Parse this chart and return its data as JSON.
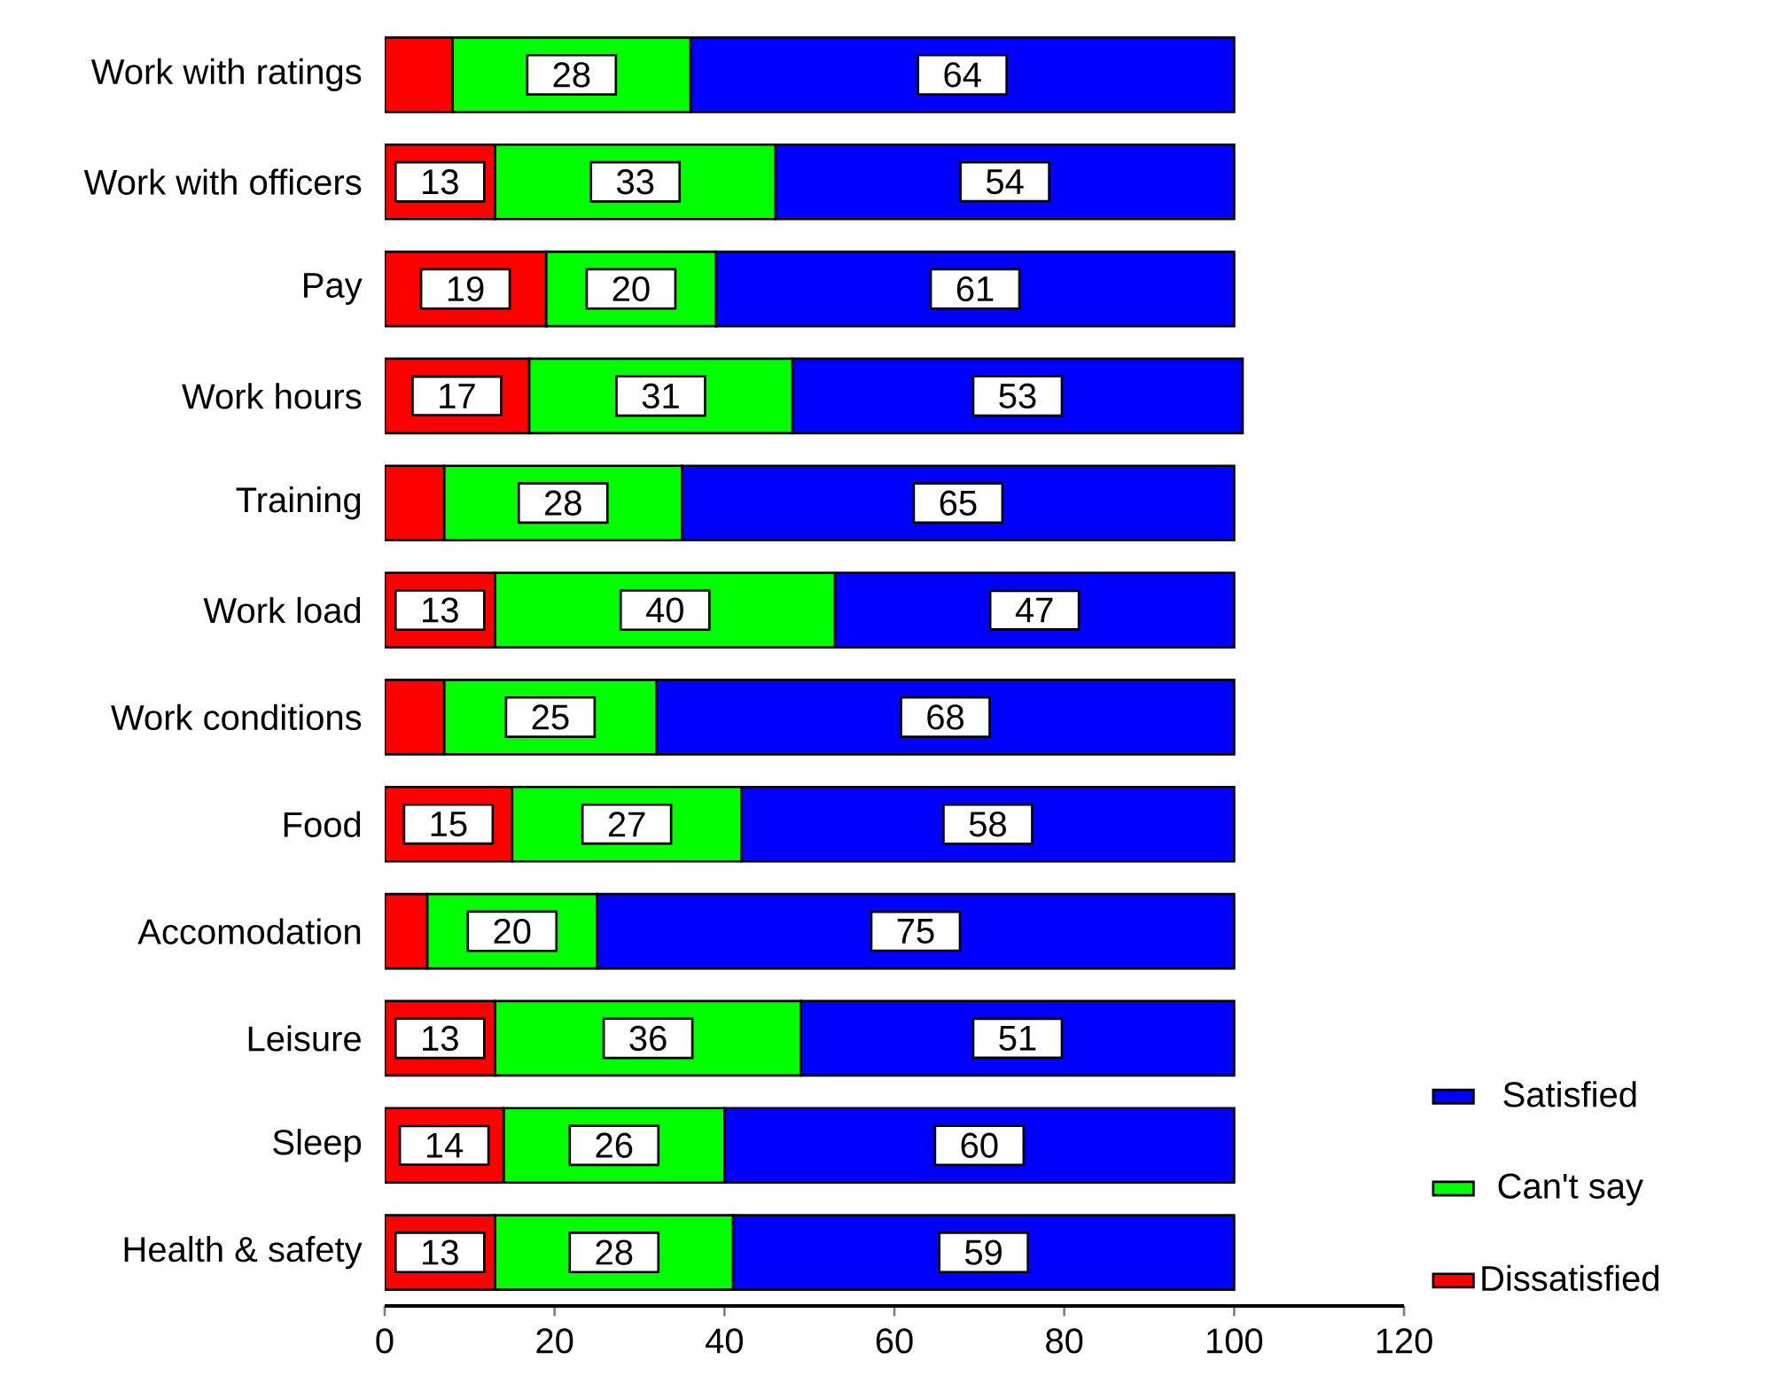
{
  "chart_data": {
    "type": "bar",
    "orientation": "horizontal",
    "stacked": true,
    "categories": [
      "Work with  ratings",
      "Work with officers",
      "Pay",
      "Work hours",
      "Training",
      "Work load",
      "Work conditions",
      "Food",
      "Accomodation",
      "Leisure",
      "Sleep",
      "Health & safety"
    ],
    "series": [
      {
        "name": "Dissatisfied",
        "color": "#ff0000",
        "values": [
          8,
          13,
          19,
          17,
          7,
          13,
          7,
          15,
          5,
          13,
          14,
          13
        ],
        "value_labels": [
          null,
          "13",
          "19",
          "17",
          null,
          "13",
          null,
          "15",
          null,
          "13",
          "14",
          "13"
        ]
      },
      {
        "name": "Can't  say",
        "color": "#00ff00",
        "values": [
          28,
          33,
          20,
          31,
          28,
          40,
          25,
          27,
          20,
          36,
          26,
          28
        ],
        "value_labels": [
          "28",
          "33",
          "20",
          "31",
          "28",
          "40",
          "25",
          "27",
          "20",
          "36",
          "26",
          "28"
        ]
      },
      {
        "name": "Satisfied",
        "color": "#0000ff",
        "values": [
          64,
          54,
          61,
          53,
          65,
          47,
          68,
          58,
          75,
          51,
          60,
          59
        ],
        "value_labels": [
          "64",
          "54",
          "61",
          "53",
          "65",
          "47",
          "68",
          "58",
          "75",
          "51",
          "60",
          "59"
        ]
      }
    ],
    "xlim": [
      0,
      120
    ],
    "xticks": [
      0,
      20,
      40,
      60,
      80,
      100,
      120
    ],
    "legend": "bottom right"
  }
}
